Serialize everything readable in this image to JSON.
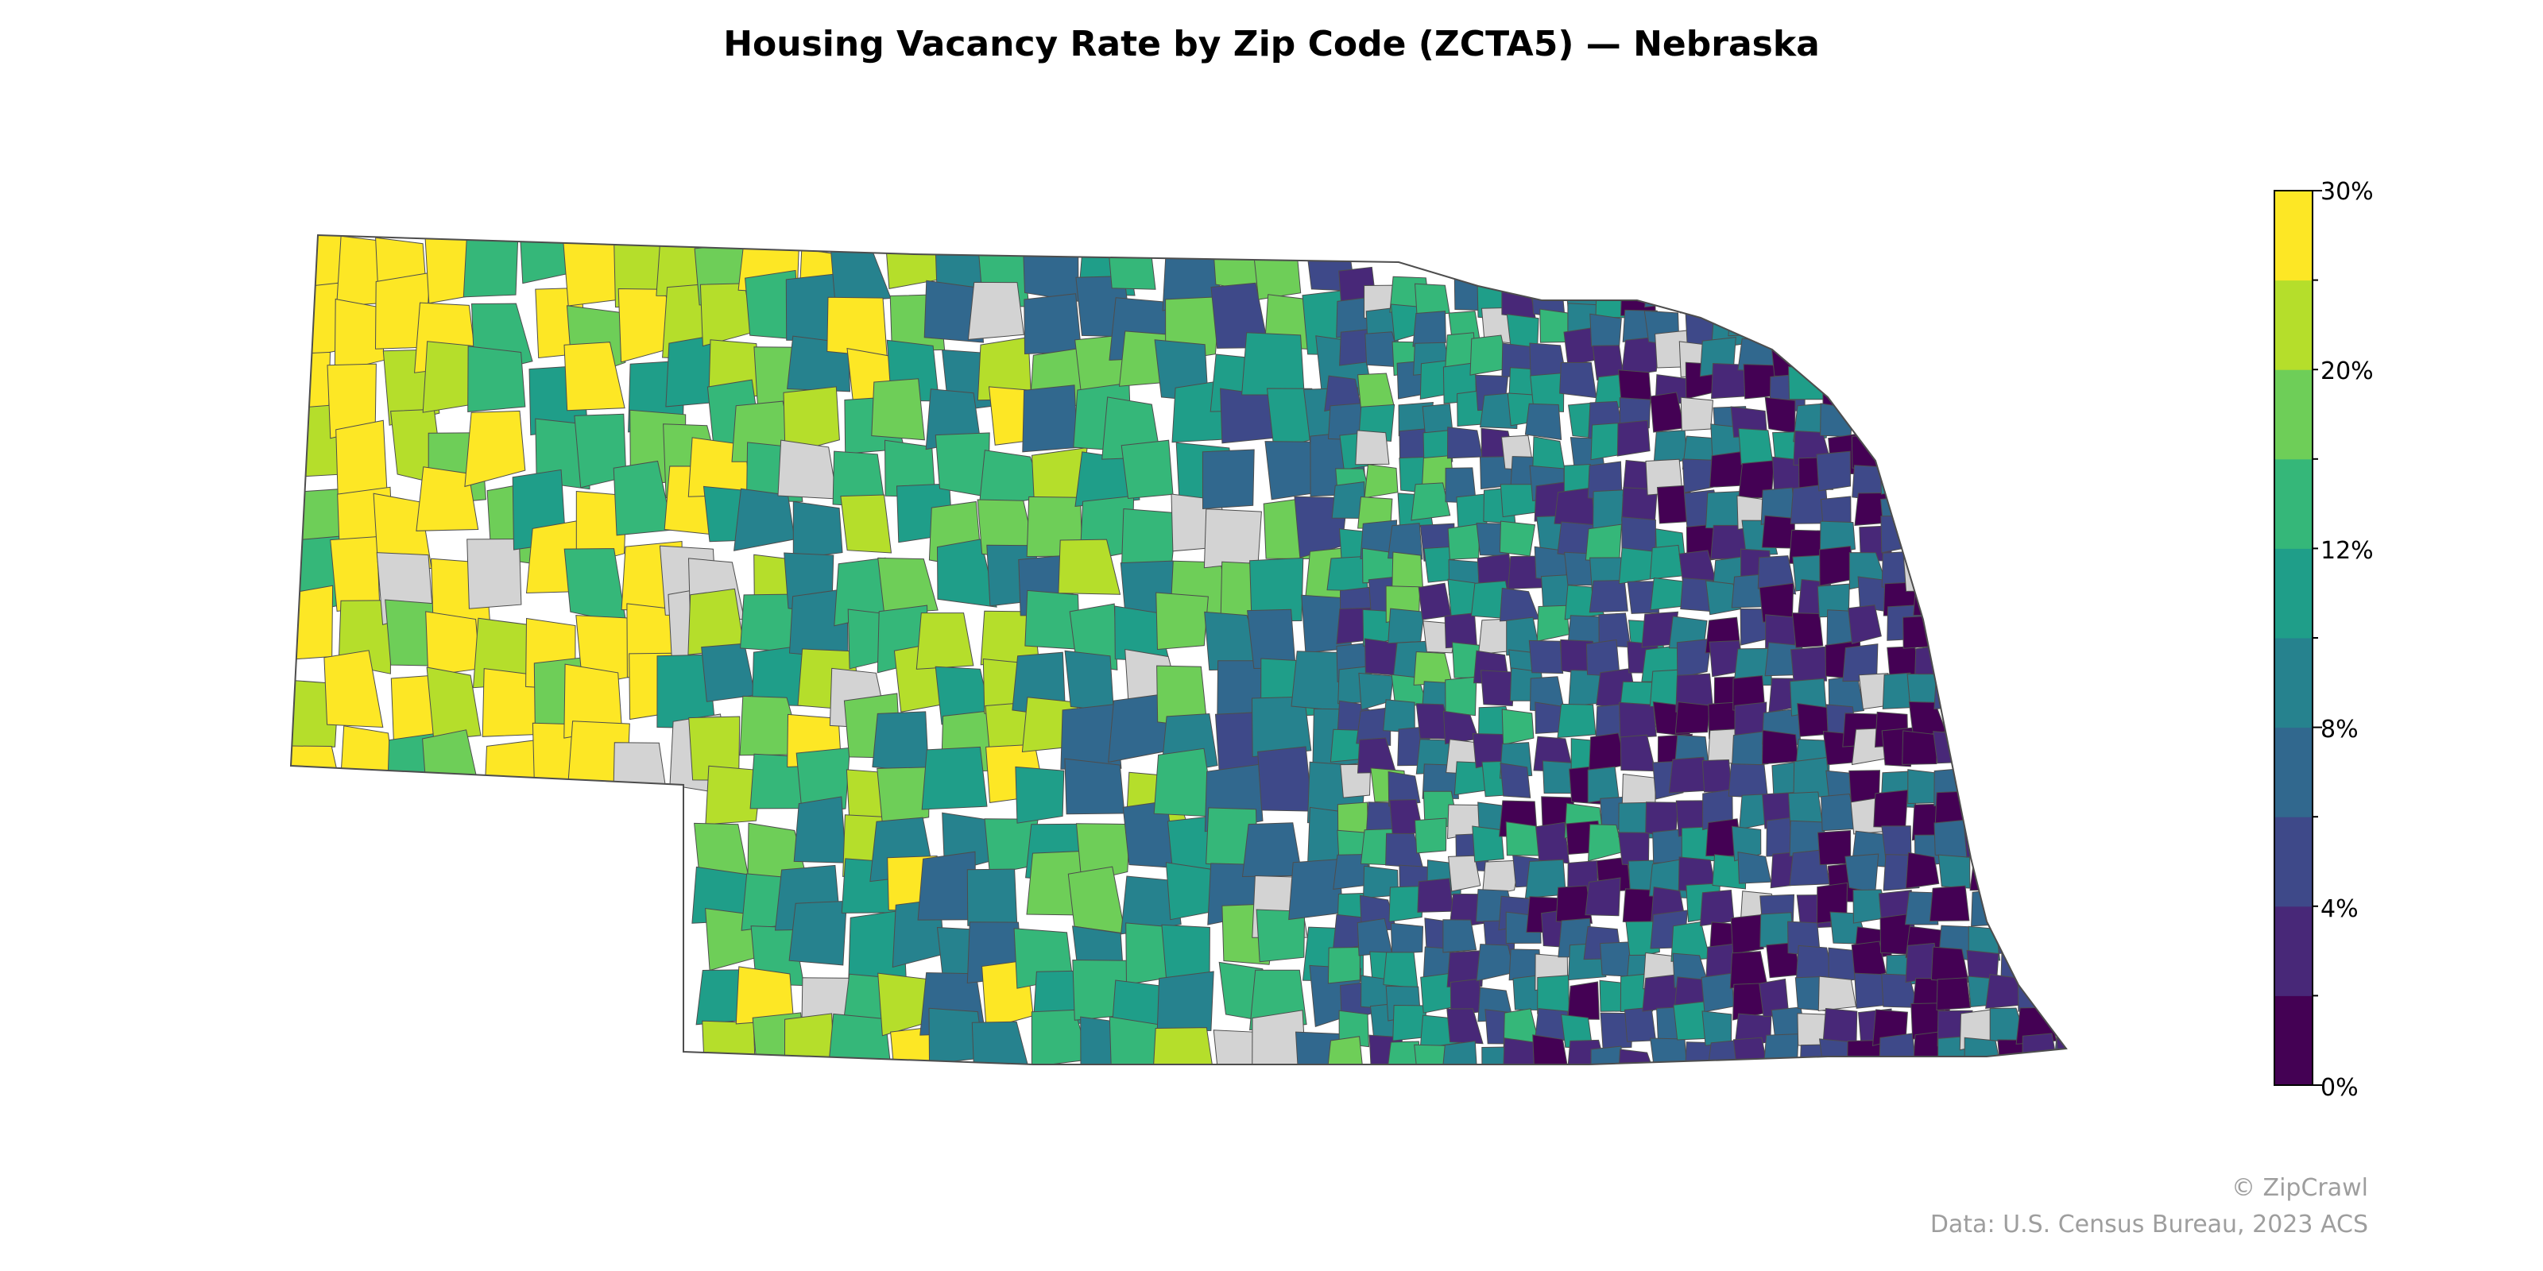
{
  "title": "Housing Vacancy Rate by Zip Code (ZCTA5) — Nebraska",
  "map": {
    "region": "Nebraska",
    "geography": "ZCTA5",
    "no_data_color": "#d3d3d3",
    "boundary_color": "#4d4d4d"
  },
  "colorbar": {
    "colormap": "viridis",
    "range": [
      0,
      30
    ],
    "bin_step": 3,
    "tick_labels": [
      "0%",
      "4%",
      "8%",
      "12%",
      "20%",
      "30%"
    ],
    "tick_values": [
      0,
      4,
      8,
      12,
      20,
      30
    ],
    "colors": [
      "#440154",
      "#482878",
      "#3e4989",
      "#31688e",
      "#26828e",
      "#1f9e89",
      "#35b779",
      "#6ece58",
      "#b5de2b",
      "#fde725"
    ]
  },
  "footer": {
    "credit": "© ZipCrawl",
    "source": "Data: U.S. Census Bureau, 2023 ACS"
  }
}
